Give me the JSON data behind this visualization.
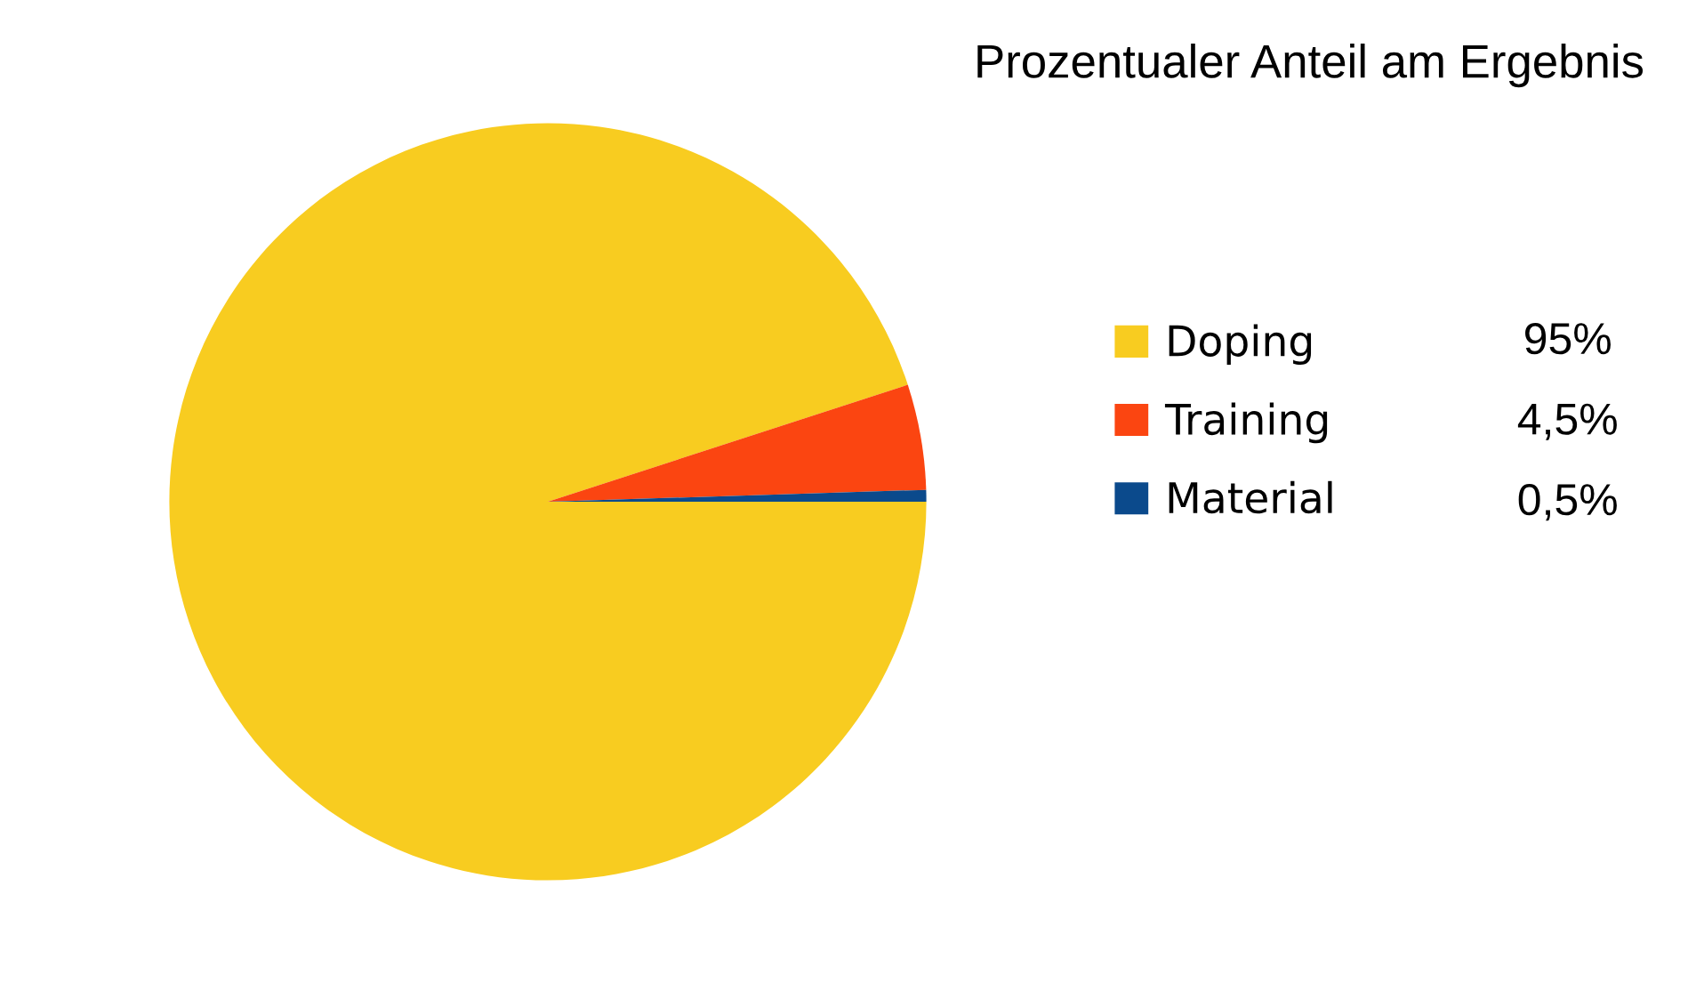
{
  "chart_data": {
    "type": "pie",
    "title": "Prozentualer Anteil am Ergebnis",
    "categories": [
      "Doping",
      "Training",
      "Material"
    ],
    "values": [
      95,
      4.5,
      0.5
    ],
    "colors": [
      "#f8cc20",
      "#fb4511",
      "#0b4a8c"
    ],
    "value_labels": [
      "95%",
      "4,5%",
      "0,5%"
    ],
    "legend": "right"
  }
}
